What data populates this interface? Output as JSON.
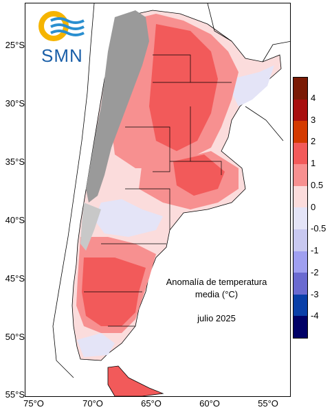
{
  "logo": {
    "text": "SMN"
  },
  "annotation": {
    "line1": "Anomalía de temperatura",
    "line2": "media (°C)",
    "date": "julio 2025"
  },
  "lat_ticks": [
    "25°S",
    "30°S",
    "35°S",
    "40°S",
    "45°S",
    "50°S",
    "55°S"
  ],
  "lon_ticks": [
    "75°O",
    "70°O",
    "65°O",
    "60°O",
    "55°O"
  ],
  "legend": {
    "labels": [
      "4",
      "3",
      "2",
      "1",
      "0.5",
      "0",
      "-0.5",
      "-1",
      "-2",
      "-3",
      "-4"
    ],
    "colors": [
      "#7a1a05",
      "#a80f0f",
      "#d43a00",
      "#f25a5a",
      "#f79090",
      "#fbdcdc",
      "#e4e4f7",
      "#c8c8f0",
      "#9f9ff0",
      "#6a6ad0",
      "#0a3fa8",
      "#000066"
    ]
  },
  "colors": {
    "very_warm": "#f25a5a",
    "warm": "#f79090",
    "slight_warm": "#fbdcdc",
    "slight_cool": "#e4e4f7",
    "andes": "#9a9a9a"
  }
}
